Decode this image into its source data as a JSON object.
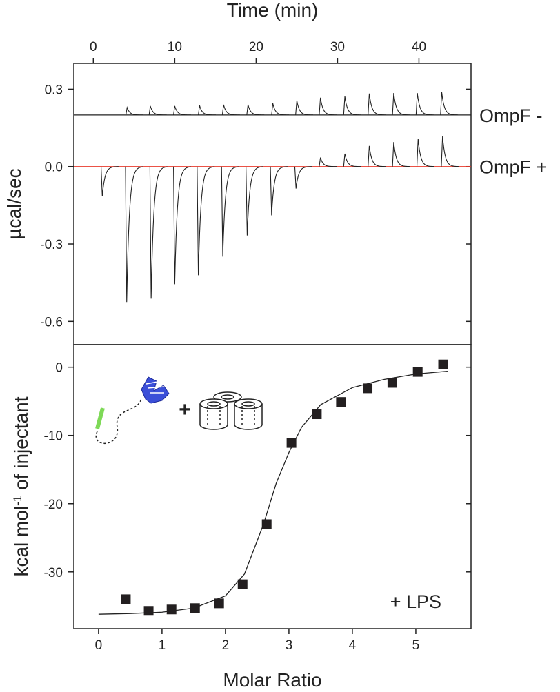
{
  "chart_data": [
    {
      "type": "thermogram",
      "xlabel": "Time (min)",
      "ylabel": "µcal/sec",
      "xlim": [
        -2.4,
        46.4
      ],
      "xticks": [
        0,
        10,
        20,
        30,
        40
      ],
      "ylim": [
        -0.69,
        0.4
      ],
      "yticks": [
        0.3,
        {
          "value": 0,
          "label": "0.0"
        },
        -0.3,
        -0.6
      ],
      "series": [
        {
          "name": "OmpF -",
          "color": "#222222",
          "baseline": 0.2,
          "baseline_color": "#222222",
          "x": [
            4.15,
            7.0,
            10.0,
            13.05,
            16.0,
            19.0,
            22.05,
            25.0,
            27.9,
            30.9,
            33.9,
            36.9,
            39.8,
            42.8
          ],
          "values": [
            0.229,
            0.235,
            0.235,
            0.237,
            0.24,
            0.24,
            0.245,
            0.256,
            0.267,
            0.272,
            0.283,
            0.285,
            0.285,
            0.288
          ]
        },
        {
          "name": "OmpF +",
          "color": "#222222",
          "baseline": 0,
          "baseline_color": "#e8392b",
          "x": [
            1.1,
            4.1,
            7.1,
            10.0,
            12.9,
            15.9,
            18.9,
            21.9,
            24.9,
            27.9,
            30.9,
            33.9,
            36.9,
            39.9,
            42.9
          ],
          "values": [
            -0.115,
            -0.525,
            -0.512,
            -0.456,
            -0.421,
            -0.349,
            -0.267,
            -0.189,
            -0.085,
            0.035,
            0.05,
            0.08,
            0.095,
            0.107,
            0.117
          ]
        }
      ]
    },
    {
      "type": "scatter",
      "xlabel": "Molar Ratio",
      "ylabel_parts": [
        "kcal mol",
        "-1",
        " of injectant"
      ],
      "annotation": "+ LPS",
      "xlim": [
        -0.39,
        5.87
      ],
      "xticks": [
        0,
        1,
        2,
        3,
        4,
        5
      ],
      "ylim": [
        -38.3,
        3.3
      ],
      "yticks": [
        0,
        -10,
        -20,
        -30
      ],
      "points": {
        "color": "#231f20",
        "x": [
          0.43,
          0.79,
          1.15,
          1.52,
          1.9,
          2.27,
          2.65,
          3.04,
          3.44,
          3.82,
          4.24,
          4.63,
          5.03,
          5.43
        ],
        "values": [
          -34.0,
          -35.7,
          -35.5,
          -35.3,
          -34.6,
          -31.8,
          -23.0,
          -11.1,
          -6.9,
          -5.1,
          -3.1,
          -2.3,
          -0.7,
          0.4
        ]
      },
      "fit": {
        "color": "#222222",
        "x": [
          0,
          0.5,
          1,
          1.5,
          2,
          2.3,
          2.6,
          2.8,
          3.0,
          3.2,
          3.5,
          4,
          4.5,
          5,
          5.5
        ],
        "values": [
          -36.2,
          -36.1,
          -35.9,
          -35.3,
          -33.5,
          -30.3,
          -23,
          -17,
          -12.5,
          -8.8,
          -5.5,
          -3,
          -1.8,
          -1,
          -0.6
        ]
      }
    }
  ]
}
